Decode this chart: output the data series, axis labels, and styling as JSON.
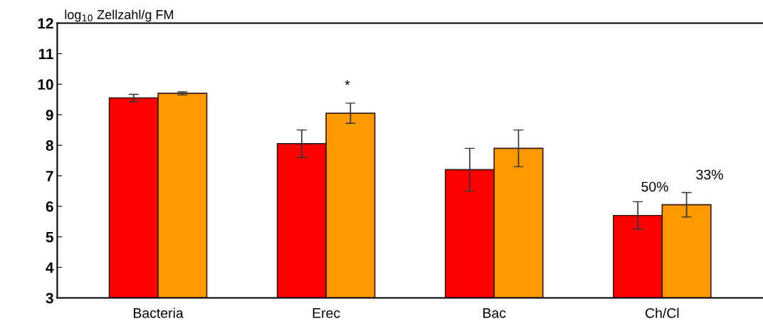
{
  "chart_data": {
    "type": "bar",
    "ylabel": "log$_{10}$ Zellzahl/g FM",
    "categories": [
      "Bacteria",
      "Erec",
      "Bac",
      "Ch/Cl"
    ],
    "series": [
      {
        "color": "#ff0000",
        "values": [
          9.55,
          8.05,
          7.2,
          5.7
        ],
        "errors": [
          0.12,
          0.45,
          0.7,
          0.45
        ]
      },
      {
        "color": "#ff9900",
        "values": [
          9.7,
          9.05,
          7.9,
          6.05
        ],
        "errors": [
          0.05,
          0.33,
          0.6,
          0.4
        ]
      }
    ],
    "ylim": [
      3,
      12
    ],
    "yticks": [
      3,
      4,
      5,
      6,
      7,
      8,
      9,
      10,
      11,
      12
    ],
    "grid": false,
    "legend": false,
    "annotations": [
      "*",
      "50%",
      "33%"
    ]
  }
}
